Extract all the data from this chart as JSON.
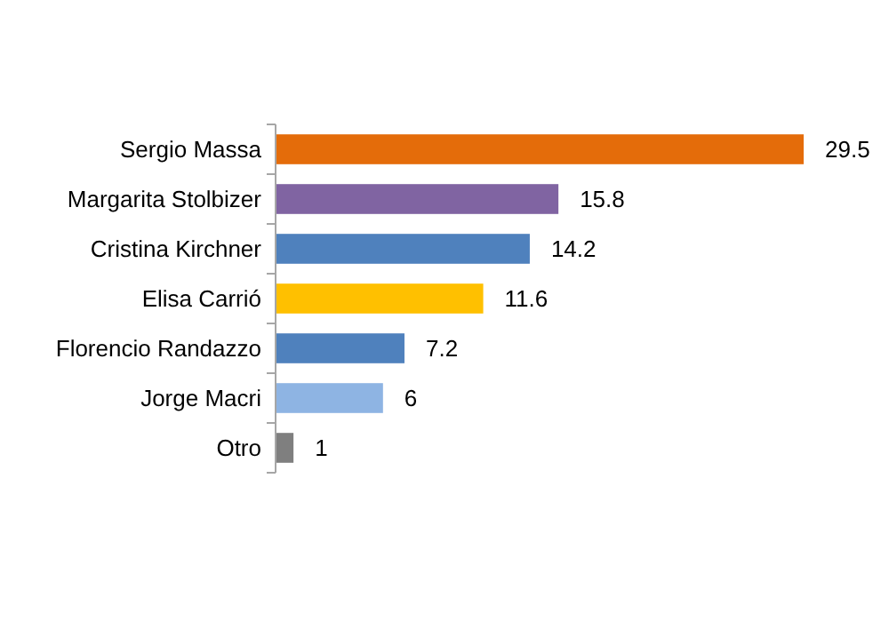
{
  "chart_data": {
    "type": "bar",
    "orientation": "horizontal",
    "data_labels": true,
    "categories": [
      "Sergio Massa",
      "Margarita Stolbizer",
      "Cristina Kirchner",
      "Elisa Carrió",
      "Florencio Randazzo",
      "Jorge Macri",
      "Otro"
    ],
    "values": [
      29.5,
      15.8,
      14.2,
      11.6,
      7.2,
      6,
      1
    ],
    "colors": [
      "#e46c0a",
      "#8064a2",
      "#4f81bd",
      "#ffc000",
      "#4f81bd",
      "#8eb4e3",
      "#7f7f7f"
    ]
  }
}
